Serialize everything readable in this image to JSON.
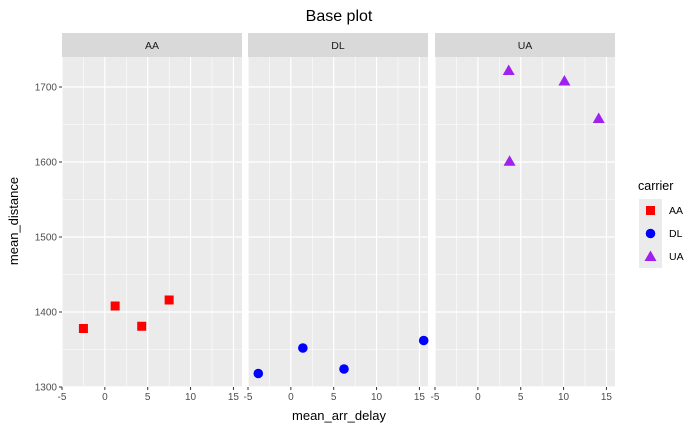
{
  "chart_data": {
    "type": "scatter",
    "title": "Base plot",
    "xlabel": "mean_arr_delay",
    "ylabel": "mean_distance",
    "xlim": [
      -5,
      16
    ],
    "ylim": [
      1300,
      1740
    ],
    "x_ticks": [
      -5,
      0,
      5,
      10,
      15
    ],
    "y_ticks": [
      1300,
      1400,
      1500,
      1600,
      1700
    ],
    "grid": true,
    "legend": {
      "title": "carrier",
      "position": "right",
      "entries": [
        {
          "label": "AA",
          "color": "#ff0000",
          "shape": "square"
        },
        {
          "label": "DL",
          "color": "#0000ff",
          "shape": "circle"
        },
        {
          "label": "UA",
          "color": "#a020f0",
          "shape": "triangle"
        }
      ]
    },
    "panels": [
      {
        "label": "AA",
        "color": "#ff0000",
        "shape": "square",
        "points": [
          {
            "x": -2.5,
            "y": 1378
          },
          {
            "x": 1.2,
            "y": 1408
          },
          {
            "x": 4.3,
            "y": 1381
          },
          {
            "x": 7.5,
            "y": 1416
          }
        ]
      },
      {
        "label": "DL",
        "color": "#0000ff",
        "shape": "circle",
        "points": [
          {
            "x": -3.8,
            "y": 1318
          },
          {
            "x": 1.4,
            "y": 1352
          },
          {
            "x": 6.2,
            "y": 1324
          },
          {
            "x": 15.5,
            "y": 1362
          }
        ]
      },
      {
        "label": "UA",
        "color": "#a020f0",
        "shape": "triangle",
        "points": [
          {
            "x": 3.6,
            "y": 1722
          },
          {
            "x": 10.1,
            "y": 1708
          },
          {
            "x": 14.1,
            "y": 1658
          },
          {
            "x": 3.7,
            "y": 1601
          }
        ]
      }
    ]
  }
}
